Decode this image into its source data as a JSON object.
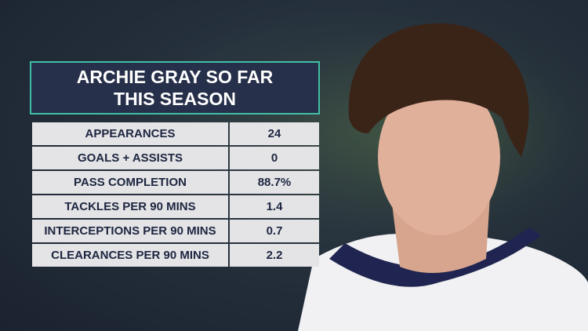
{
  "title": "ARCHIE GRAY SO FAR THIS SEASON",
  "table": {
    "rows": [
      [
        "APPEARANCES",
        "24"
      ],
      [
        "GOALS + ASSISTS",
        "0"
      ],
      [
        "PASS COMPLETION",
        "88.7%"
      ],
      [
        "TACKLES PER 90 MINS",
        "1.4"
      ],
      [
        "INTERCEPTIONS PER 90 MINS",
        "0.7"
      ],
      [
        "CLEARANCES PER 90 MINS",
        "2.2"
      ]
    ]
  }
}
